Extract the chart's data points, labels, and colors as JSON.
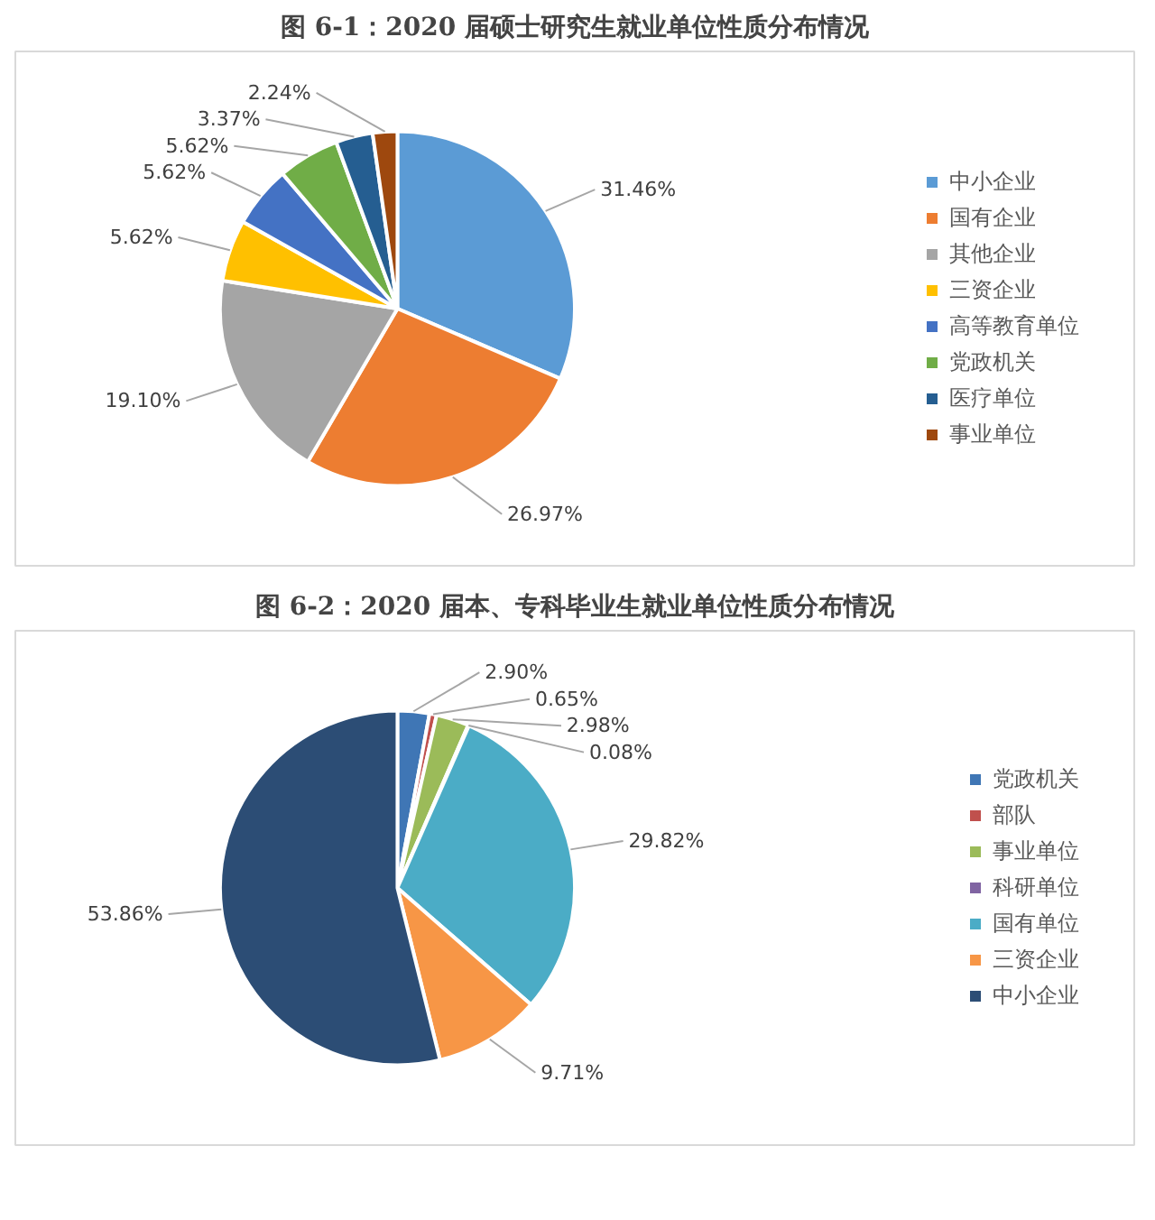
{
  "chart_data": [
    {
      "type": "pie",
      "title": "图 6-1：2020 届硕士研究生就业单位性质分布情况",
      "categories": [
        "中小企业",
        "国有企业",
        "其他企业",
        "三资企业",
        "高等教育单位",
        "党政机关",
        "医疗单位",
        "事业单位"
      ],
      "values": [
        31.46,
        26.97,
        19.1,
        5.62,
        5.62,
        5.62,
        3.37,
        2.24
      ],
      "colors": [
        "#5b9bd5",
        "#ed7d31",
        "#a5a5a5",
        "#ffc000",
        "#4472c4",
        "#70ad47",
        "#255e91",
        "#9e480e"
      ],
      "value_labels": [
        "31.46%",
        "26.97%",
        "19.10%",
        "5.62%",
        "5.62%",
        "5.62%",
        "3.37%",
        "2.24%"
      ],
      "legend": "right"
    },
    {
      "type": "pie",
      "title": "图 6-2：2020 届本、专科毕业生就业单位性质分布情况",
      "categories": [
        "党政机关",
        "部队",
        "事业单位",
        "科研单位",
        "国有单位",
        "三资企业",
        "中小企业"
      ],
      "values": [
        2.9,
        0.65,
        2.98,
        0.08,
        29.82,
        9.71,
        53.86
      ],
      "colors": [
        "#3f76b5",
        "#c0504d",
        "#9bbb59",
        "#8064a2",
        "#4bacc6",
        "#f79646",
        "#2c4d75"
      ],
      "value_labels": [
        "2.90%",
        "0.65%",
        "2.98%",
        "0.08%",
        "29.82%",
        "9.71%",
        "53.86%"
      ],
      "legend": "right"
    }
  ]
}
